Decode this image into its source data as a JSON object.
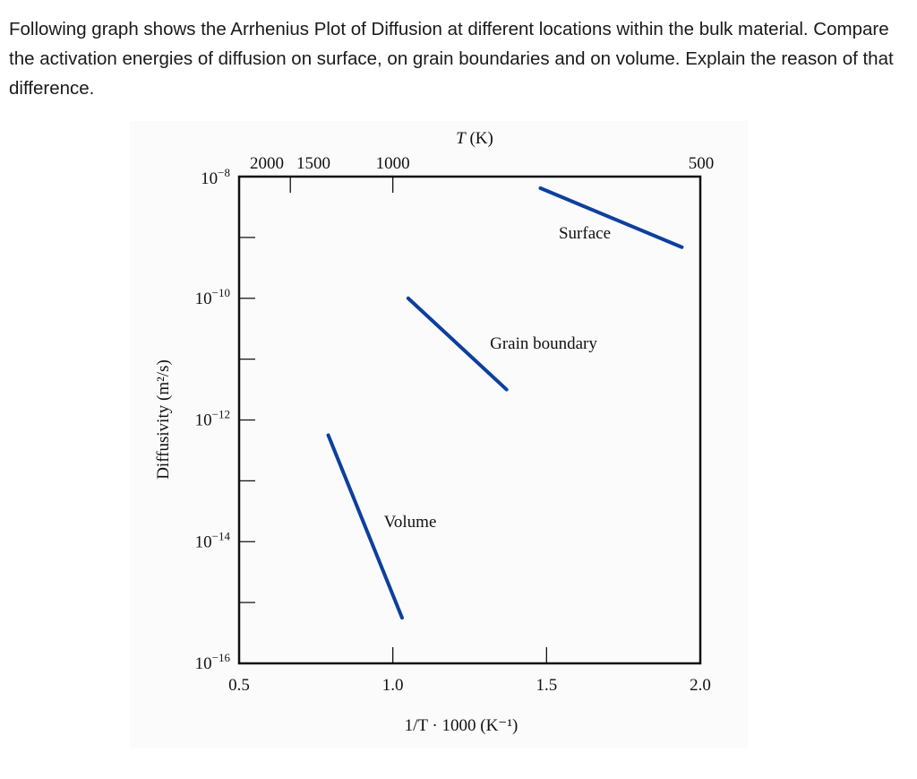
{
  "question": "Following graph shows the Arrhenius Plot of Diffusion at different locations within the bulk material. Compare the activation energies of diffusion on surface, on grain boundaries and on volume. Explain the reason of that difference.",
  "chart_data": {
    "type": "line",
    "title": "",
    "xlabel": "1/T · 1000 (K⁻¹)",
    "xlabel_parts": {
      "num": "1",
      "den": "T",
      "rest": "· 1000 (K",
      "sup": "−1",
      "close": ")"
    },
    "ylabel": "Diffusivity (m²/s)",
    "top_axis_label": "T (K)",
    "xlim": [
      0.5,
      2.0
    ],
    "ylim": [
      1e-16,
      1e-08
    ],
    "yscale": "log",
    "x_ticks": [
      "0.5",
      "1.0",
      "1.5",
      "2.0"
    ],
    "x_tick_values": [
      0.5,
      1.0,
      1.5,
      2.0
    ],
    "top_ticks": [
      {
        "label": "2000",
        "T": 2000
      },
      {
        "label": "1500",
        "T": 1500
      },
      {
        "label": "1000",
        "T": 1000
      },
      {
        "label": "500",
        "T": 500
      }
    ],
    "y_ticks": [
      {
        "base": "10",
        "exp": "−8",
        "value": -8
      },
      {
        "base": "10",
        "exp": "−10",
        "value": -10
      },
      {
        "base": "10",
        "exp": "−12",
        "value": -12
      },
      {
        "base": "10",
        "exp": "−14",
        "value": -14
      },
      {
        "base": "10",
        "exp": "−16",
        "value": -16
      }
    ],
    "line_color": "#0d3f9e",
    "grid": false,
    "series": [
      {
        "name": "Surface",
        "x": [
          1.48,
          1.94
        ],
        "log10_y": [
          -8.19,
          -9.16
        ]
      },
      {
        "name": "Grain boundary",
        "x": [
          1.05,
          1.37
        ],
        "log10_y": [
          -10.0,
          -11.5
        ]
      },
      {
        "name": "Volume",
        "x": [
          0.79,
          1.03
        ],
        "log10_y": [
          -12.25,
          -15.25
        ]
      }
    ]
  }
}
